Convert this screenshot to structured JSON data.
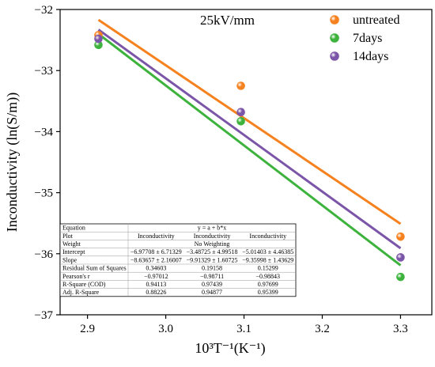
{
  "chart_data": {
    "type": "scatter",
    "title": "",
    "annotation": "25kV/mm",
    "xlabel": "10³T⁻¹(K⁻¹)",
    "ylabel": "Inconductivity (ln(S/m))",
    "xlim": [
      2.865,
      3.34
    ],
    "ylim": [
      -37,
      -32
    ],
    "x_ticks": [
      "2.9",
      "3.0",
      "3.1",
      "3.2",
      "3.3"
    ],
    "y_ticks": [
      "-32",
      "-33",
      "-34",
      "-35",
      "-36",
      "-37"
    ],
    "x_tick_values": [
      2.9,
      3.0,
      3.1,
      3.2,
      3.3
    ],
    "y_tick_values": [
      -32,
      -33,
      -34,
      -35,
      -36,
      -37
    ],
    "legend_position": "top-right",
    "grid": false,
    "series": [
      {
        "name": "untreated",
        "color": "#f5821f",
        "x": [
          2.914,
          3.096,
          3.3
        ],
        "y": [
          -32.42,
          -33.25,
          -35.72
        ],
        "fit": {
          "x": [
            2.914,
            3.3
          ],
          "y": [
            -32.17,
            -35.51
          ]
        }
      },
      {
        "name": "7days",
        "color": "#3db33d",
        "x": [
          2.914,
          3.096,
          3.3
        ],
        "y": [
          -32.58,
          -33.83,
          -36.38
        ],
        "fit": {
          "x": [
            2.914,
            3.3
          ],
          "y": [
            -32.4,
            -36.19
          ]
        }
      },
      {
        "name": "14days",
        "color": "#7b55a8",
        "x": [
          2.914,
          3.096,
          3.3
        ],
        "y": [
          -32.48,
          -33.68,
          -36.06
        ],
        "fit": {
          "x": [
            2.914,
            3.3
          ],
          "y": [
            -32.33,
            -35.91
          ]
        }
      }
    ],
    "fit_table": {
      "rows": [
        {
          "label": "Equation",
          "cells": [
            "y = a + b*x"
          ]
        },
        {
          "label": "Plot",
          "cells": [
            "Inconductivity",
            "Inconductivity",
            "Inconductivity"
          ]
        },
        {
          "label": "Weight",
          "cells": [
            "No Weighting"
          ]
        },
        {
          "label": "Intercept",
          "cells": [
            "−6.97708 ± 6.71329",
            "−3.48725 ± 4.99518",
            "−5.01403 ± 4.46385"
          ]
        },
        {
          "label": "Slope",
          "cells": [
            "−8.63657 ± 2.16007",
            "−9.91329 ± 1.60725",
            "−9.35998 ± 1.43629"
          ]
        },
        {
          "label": "Residual Sum of Squares",
          "cells": [
            "0.34603",
            "0.19158",
            "0.15299"
          ]
        },
        {
          "label": "Pearson's r",
          "cells": [
            "−0.97012",
            "−0.98711",
            "−0.98843"
          ]
        },
        {
          "label": "R-Square (COD)",
          "cells": [
            "0.94113",
            "0.97439",
            "0.97699"
          ]
        },
        {
          "label": "Adj. R-Square",
          "cells": [
            "0.88226",
            "0.94877",
            "0.95399"
          ]
        }
      ]
    }
  }
}
